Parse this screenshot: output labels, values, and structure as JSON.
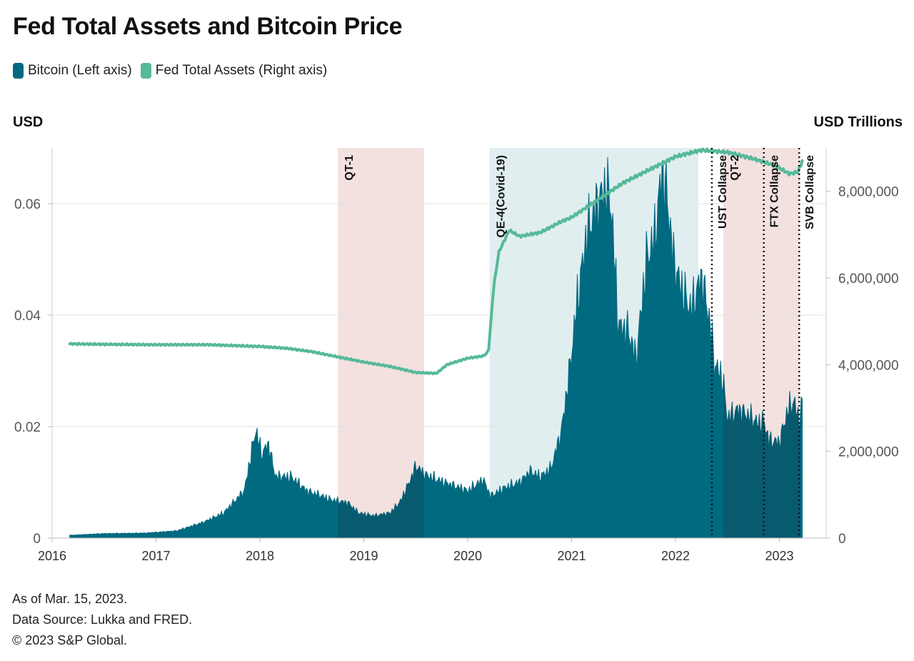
{
  "header": {
    "title": "Fed Total Assets and Bitcoin Price"
  },
  "legend": [
    {
      "label": "Bitcoin (Left axis)",
      "color": "#006a80"
    },
    {
      "label": "Fed Total Assets (Right axis)",
      "color": "#56b99a"
    }
  ],
  "axes": {
    "left_unit": "USD",
    "right_unit": "USD Trillions"
  },
  "footer": {
    "as_of": "As of Mar. 15, 2023.",
    "source": "Data Source: Lukka and FRED.",
    "copyright": "© 2023 S&P Global."
  },
  "chart_data": {
    "type": "area",
    "x_ticks": [
      "2016",
      "2017",
      "2018",
      "2019",
      "2020",
      "2021",
      "2022",
      "2023"
    ],
    "y_left": {
      "ticks": [
        0,
        0.02,
        0.04,
        0.06
      ],
      "tick_labels": [
        "0",
        "0.02",
        "0.04",
        "0.06"
      ],
      "range": [
        0,
        0.07
      ]
    },
    "y_right": {
      "ticks": [
        0,
        2000000,
        4000000,
        6000000,
        8000000
      ],
      "tick_labels": [
        "0",
        "2,000,000",
        "4,000,000",
        "6,000,000",
        "8,000,000"
      ],
      "range": [
        0,
        9000000
      ]
    },
    "shaded_periods": [
      {
        "label": "QT-1",
        "start": 2018.75,
        "end": 2019.58,
        "color": "#f2e1df"
      },
      {
        "label": "QE-4(Covid-19)",
        "start": 2020.21,
        "end": 2022.22,
        "color": "#e0eef0"
      },
      {
        "label": "QT-2",
        "start": 2022.46,
        "end": 2023.2,
        "color": "#f2e1df"
      }
    ],
    "events": [
      {
        "label": "UST Collapse",
        "x": 2022.35
      },
      {
        "label": "FTX Collapse",
        "x": 2022.85
      },
      {
        "label": "SVB Collapse",
        "x": 2023.19
      }
    ],
    "series": [
      {
        "name": "Bitcoin",
        "axis": "left",
        "color": "#006a80",
        "points": [
          [
            2016.17,
            0.0005
          ],
          [
            2016.5,
            0.0008
          ],
          [
            2016.9,
            0.0009
          ],
          [
            2017.2,
            0.0013
          ],
          [
            2017.45,
            0.0028
          ],
          [
            2017.65,
            0.0045
          ],
          [
            2017.85,
            0.0085
          ],
          [
            2017.96,
            0.0195
          ],
          [
            2018.02,
            0.015
          ],
          [
            2018.08,
            0.017
          ],
          [
            2018.15,
            0.011
          ],
          [
            2018.3,
            0.011
          ],
          [
            2018.45,
            0.0085
          ],
          [
            2018.6,
            0.0075
          ],
          [
            2018.7,
            0.0068
          ],
          [
            2018.85,
            0.0063
          ],
          [
            2018.95,
            0.0045
          ],
          [
            2019.1,
            0.004
          ],
          [
            2019.25,
            0.0045
          ],
          [
            2019.35,
            0.0065
          ],
          [
            2019.45,
            0.0105
          ],
          [
            2019.5,
            0.013
          ],
          [
            2019.58,
            0.0115
          ],
          [
            2019.7,
            0.0105
          ],
          [
            2019.85,
            0.0095
          ],
          [
            2020.0,
            0.0085
          ],
          [
            2020.15,
            0.0105
          ],
          [
            2020.22,
            0.0075
          ],
          [
            2020.35,
            0.009
          ],
          [
            2020.5,
            0.01
          ],
          [
            2020.6,
            0.012
          ],
          [
            2020.7,
            0.011
          ],
          [
            2020.8,
            0.0125
          ],
          [
            2020.9,
            0.019
          ],
          [
            2020.98,
            0.03
          ],
          [
            2021.05,
            0.042
          ],
          [
            2021.15,
            0.055
          ],
          [
            2021.25,
            0.06
          ],
          [
            2021.33,
            0.063
          ],
          [
            2021.38,
            0.06
          ],
          [
            2021.45,
            0.038
          ],
          [
            2021.55,
            0.037
          ],
          [
            2021.62,
            0.032
          ],
          [
            2021.72,
            0.05
          ],
          [
            2021.8,
            0.054
          ],
          [
            2021.87,
            0.066
          ],
          [
            2021.92,
            0.061
          ],
          [
            2021.98,
            0.05
          ],
          [
            2022.05,
            0.045
          ],
          [
            2022.15,
            0.041
          ],
          [
            2022.25,
            0.047
          ],
          [
            2022.32,
            0.04
          ],
          [
            2022.38,
            0.031
          ],
          [
            2022.45,
            0.029
          ],
          [
            2022.5,
            0.0215
          ],
          [
            2022.6,
            0.023
          ],
          [
            2022.7,
            0.022
          ],
          [
            2022.8,
            0.0205
          ],
          [
            2022.85,
            0.021
          ],
          [
            2022.9,
            0.0175
          ],
          [
            2023.0,
            0.0172
          ],
          [
            2023.08,
            0.023
          ],
          [
            2023.14,
            0.0245
          ],
          [
            2023.19,
            0.021
          ],
          [
            2023.22,
            0.0245
          ]
        ]
      },
      {
        "name": "Fed Total Assets",
        "axis": "right",
        "color": "#56b99a",
        "points": [
          [
            2016.17,
            4480000
          ],
          [
            2016.5,
            4470000
          ],
          [
            2017.0,
            4460000
          ],
          [
            2017.5,
            4460000
          ],
          [
            2018.0,
            4420000
          ],
          [
            2018.25,
            4380000
          ],
          [
            2018.5,
            4300000
          ],
          [
            2018.75,
            4180000
          ],
          [
            2019.0,
            4060000
          ],
          [
            2019.25,
            3960000
          ],
          [
            2019.5,
            3820000
          ],
          [
            2019.7,
            3800000
          ],
          [
            2019.8,
            4000000
          ],
          [
            2020.0,
            4150000
          ],
          [
            2020.15,
            4200000
          ],
          [
            2020.2,
            4300000
          ],
          [
            2020.25,
            5800000
          ],
          [
            2020.3,
            6600000
          ],
          [
            2020.4,
            7100000
          ],
          [
            2020.5,
            6960000
          ],
          [
            2020.7,
            7050000
          ],
          [
            2020.9,
            7300000
          ],
          [
            2021.0,
            7400000
          ],
          [
            2021.25,
            7800000
          ],
          [
            2021.5,
            8200000
          ],
          [
            2021.75,
            8500000
          ],
          [
            2022.0,
            8800000
          ],
          [
            2022.25,
            8950000
          ],
          [
            2022.5,
            8900000
          ],
          [
            2022.75,
            8750000
          ],
          [
            2022.95,
            8600000
          ],
          [
            2023.1,
            8400000
          ],
          [
            2023.18,
            8450000
          ],
          [
            2023.22,
            8700000
          ]
        ]
      }
    ]
  }
}
